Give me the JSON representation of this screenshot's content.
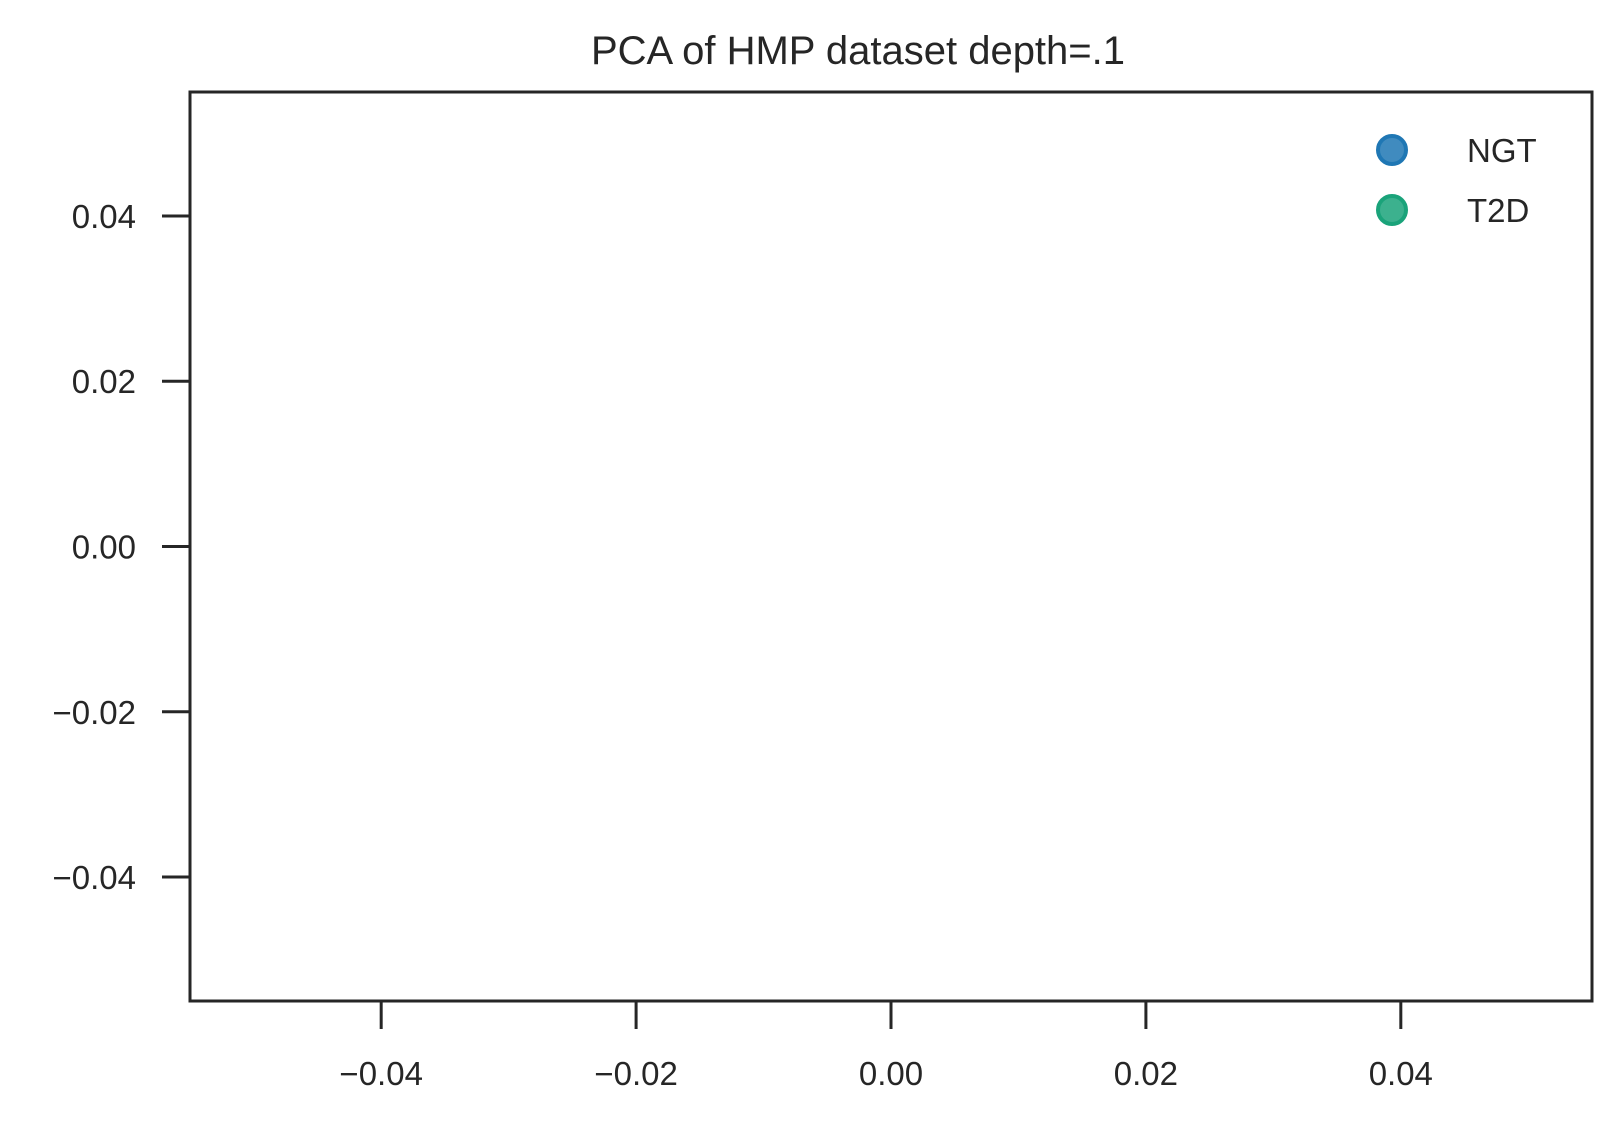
{
  "chart_data": {
    "type": "scatter",
    "title": "PCA of HMP dataset depth=.1",
    "xlabel": "",
    "ylabel": "",
    "xlim": [
      -0.055,
      0.055
    ],
    "ylim": [
      -0.055,
      0.055
    ],
    "xticks": [
      -0.04,
      -0.02,
      0.0,
      0.02,
      0.04
    ],
    "yticks": [
      0.04,
      0.02,
      0.0,
      -0.02,
      -0.04
    ],
    "xtick_labels": [
      "−0.04",
      "−0.02",
      "0.00",
      "0.02",
      "0.04"
    ],
    "ytick_labels": [
      "0.04",
      "0.02",
      "0.00",
      "−0.02",
      "−0.04"
    ],
    "grid": false,
    "legend_position": "top-right",
    "series": [
      {
        "name": "NGT",
        "color": "#1f77b4",
        "points": []
      },
      {
        "name": "T2D",
        "color": "#1aa37a",
        "points": []
      }
    ]
  }
}
